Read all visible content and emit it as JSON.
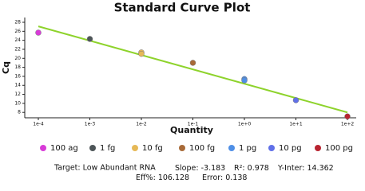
{
  "chart_data": {
    "type": "scatter",
    "title": "Standard Curve Plot",
    "x_label": "Quantity",
    "y_label": "Cq",
    "log_x": true,
    "xlim": [
      0.0001,
      100
    ],
    "xticks": [
      {
        "value": 0.0001,
        "label": "1e-4"
      },
      {
        "value": 0.001,
        "label": "1e-3"
      },
      {
        "value": 0.01,
        "label": "1e-2"
      },
      {
        "value": 0.1,
        "label": "1e-1"
      },
      {
        "value": 1,
        "label": "1e+0"
      },
      {
        "value": 10,
        "label": "1e+1"
      },
      {
        "value": 100,
        "label": "1e+2"
      }
    ],
    "ylim": [
      6.8,
      28
    ],
    "yticks": [
      8,
      10,
      12,
      14,
      16,
      18,
      20,
      22,
      24,
      26,
      28
    ],
    "fit_color": "#8ed32c",
    "series": [
      {
        "name": "100 ag",
        "color": "#d83bd8",
        "x": [
          0.0001
        ],
        "values": [
          25.7
        ]
      },
      {
        "name": "1 fg",
        "color": "#4d5558",
        "x": [
          0.001
        ],
        "values": [
          24.3
        ]
      },
      {
        "name": "10 fg",
        "color": "#e6b957",
        "x": [
          0.01,
          0.01
        ],
        "values": [
          21.3,
          21.0
        ]
      },
      {
        "name": "100 fg",
        "color": "#a86a38",
        "x": [
          0.1
        ],
        "values": [
          19.0
        ]
      },
      {
        "name": "1 pg",
        "color": "#4f8fe6",
        "x": [
          1,
          1
        ],
        "values": [
          15.4,
          15.1
        ]
      },
      {
        "name": "10 pg",
        "color": "#6070e8",
        "x": [
          10
        ],
        "values": [
          10.7
        ]
      },
      {
        "name": "100 pg",
        "color": "#b82430",
        "x": [
          100
        ],
        "values": [
          7.1
        ]
      }
    ],
    "target": "Target: Low Abundant RNA",
    "stats": [
      {
        "label": "Slope:",
        "value": -3.183
      },
      {
        "label": "R²:",
        "value": 0.978
      },
      {
        "label": "Y-Inter:",
        "value": 14.362
      },
      {
        "label": "Eff%:",
        "value": 106.128
      },
      {
        "label": "Error:",
        "value": 0.138
      }
    ]
  }
}
